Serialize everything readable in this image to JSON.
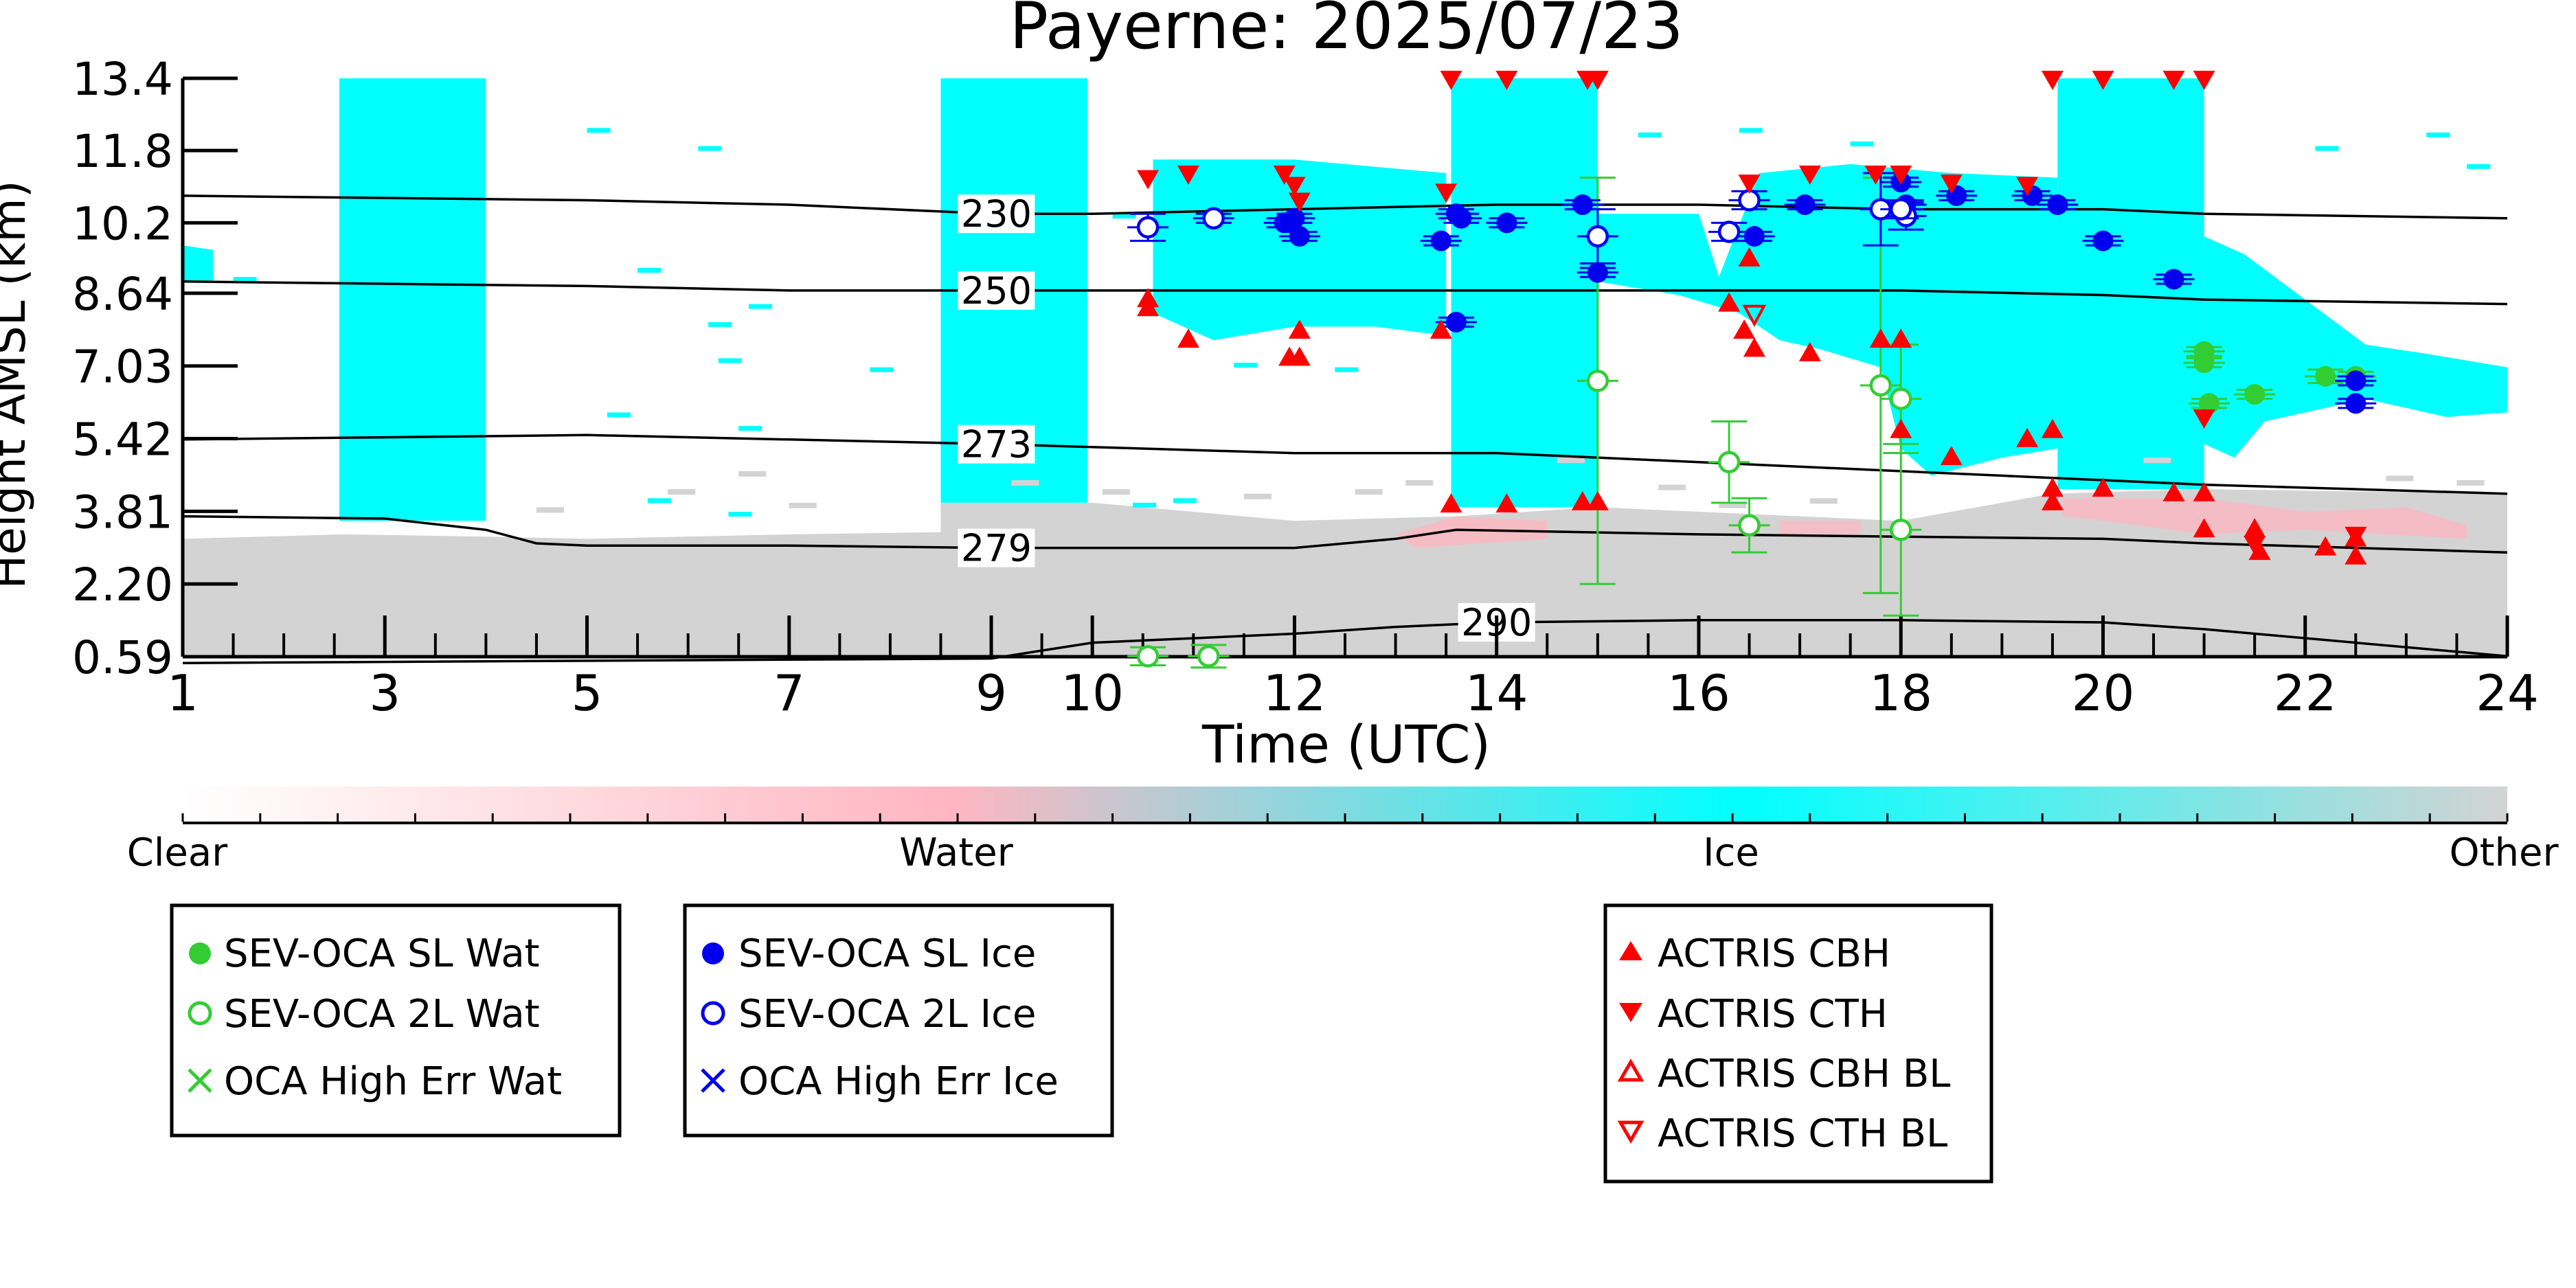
{
  "chart_data": {
    "type": "scatter",
    "title": "Payerne: 2025/07/23",
    "xlabel": "Time (UTC)",
    "ylabel": "Height AMSL (km)",
    "xlim": [
      1,
      24
    ],
    "ylim": [
      0.59,
      13.4
    ],
    "x_ticks": [
      1,
      3,
      5,
      7,
      9,
      10,
      12,
      14,
      16,
      18,
      20,
      22,
      24
    ],
    "y_ticks": [
      "0.59",
      "2.20",
      "3.81",
      "5.42",
      "7.03",
      "8.64",
      "10.2",
      "11.8",
      "13.4"
    ],
    "y_tick_values": [
      0.59,
      2.2,
      3.81,
      5.42,
      7.03,
      8.64,
      10.2,
      11.8,
      13.4
    ],
    "colorbar": {
      "labels": [
        "Clear",
        "Water",
        "Ice",
        "Other"
      ],
      "colors": [
        "#ffffff",
        "#ffb6c1",
        "#00ffff",
        "#d3d3d3"
      ]
    },
    "isotherms": [
      {
        "label": "230",
        "label_x": 9.05,
        "x": [
          1,
          5,
          7,
          9,
          10,
          12,
          14,
          16,
          18,
          20,
          21,
          24
        ],
        "y": [
          10.8,
          10.7,
          10.6,
          10.4,
          10.4,
          10.5,
          10.6,
          10.6,
          10.5,
          10.5,
          10.4,
          10.3
        ]
      },
      {
        "label": "250",
        "label_x": 9.05,
        "x": [
          1,
          5,
          7,
          9,
          10,
          12,
          14,
          16,
          18,
          20,
          21,
          24
        ],
        "y": [
          8.9,
          8.8,
          8.7,
          8.7,
          8.7,
          8.7,
          8.7,
          8.7,
          8.7,
          8.6,
          8.5,
          8.4
        ]
      },
      {
        "label": "273",
        "label_x": 9.05,
        "x": [
          1,
          3,
          5,
          7,
          9,
          12,
          14,
          16,
          18,
          20,
          21,
          24
        ],
        "y": [
          5.4,
          5.45,
          5.5,
          5.4,
          5.3,
          5.1,
          5.1,
          4.9,
          4.7,
          4.5,
          4.4,
          4.2
        ]
      },
      {
        "label": "279",
        "label_x": 9.05,
        "x": [
          1,
          3,
          4,
          4.5,
          5,
          7,
          9,
          12,
          13,
          13.6,
          16,
          18,
          20,
          21,
          24
        ],
        "y": [
          3.7,
          3.65,
          3.4,
          3.1,
          3.05,
          3.05,
          3.0,
          3.0,
          3.2,
          3.4,
          3.3,
          3.25,
          3.2,
          3.1,
          2.9
        ]
      },
      {
        "label": "290",
        "label_x": 14.0,
        "x": [
          1,
          9,
          10,
          11,
          12,
          13,
          14,
          16,
          18,
          20,
          21,
          24
        ],
        "y": [
          0.45,
          0.55,
          0.9,
          1.0,
          1.1,
          1.25,
          1.35,
          1.4,
          1.4,
          1.35,
          1.2,
          0.6
        ]
      }
    ],
    "series": [
      {
        "name": "SEV-OCA SL Wat",
        "marker": "filled-circle",
        "color": "#33cc33",
        "points": [
          [
            21.0,
            7.35
          ],
          [
            21.0,
            7.1
          ],
          [
            21.05,
            6.2
          ],
          [
            21.5,
            6.4
          ],
          [
            22.2,
            6.8
          ],
          [
            22.5,
            6.8
          ]
        ],
        "err": [
          0.1,
          0.1,
          0.1,
          0.1,
          0.15,
          0.1
        ]
      },
      {
        "name": "SEV-OCA 2L Wat",
        "marker": "open-circle",
        "color": "#33cc33",
        "points": [
          [
            10.55,
            0.6
          ],
          [
            11.15,
            0.6
          ],
          [
            15.0,
            6.7
          ],
          [
            16.3,
            4.9
          ],
          [
            16.5,
            3.5
          ],
          [
            17.8,
            6.6
          ],
          [
            18.0,
            6.3
          ],
          [
            18.0,
            3.4
          ]
        ],
        "err": [
          0.2,
          0.25,
          4.5,
          0.9,
          0.6,
          4.6,
          1.2,
          1.9
        ]
      },
      {
        "name": "OCA High Err Wat",
        "marker": "x",
        "color": "#33cc33",
        "points": []
      },
      {
        "name": "SEV-OCA SL Ice",
        "marker": "filled-circle",
        "color": "#0000ee",
        "points": [
          [
            11.9,
            10.2
          ],
          [
            12.0,
            10.3
          ],
          [
            12.05,
            9.9
          ],
          [
            13.45,
            9.8
          ],
          [
            13.6,
            10.4
          ],
          [
            13.65,
            10.3
          ],
          [
            13.6,
            8.0
          ],
          [
            14.1,
            10.2
          ],
          [
            14.85,
            10.6
          ],
          [
            15.0,
            9.1
          ],
          [
            16.55,
            9.9
          ],
          [
            17.05,
            10.6
          ],
          [
            18.0,
            11.1
          ],
          [
            18.05,
            10.6
          ],
          [
            18.55,
            10.8
          ],
          [
            19.3,
            10.8
          ],
          [
            19.55,
            10.6
          ],
          [
            20.0,
            9.8
          ],
          [
            20.7,
            8.95
          ],
          [
            22.5,
            6.7
          ],
          [
            22.5,
            6.2
          ]
        ],
        "err": [
          0.1,
          0.1,
          0.1,
          0.1,
          0.1,
          0.1,
          0.1,
          0.1,
          0.1,
          0.1,
          0.1,
          0.1,
          0.1,
          0.1,
          0.1,
          0.1,
          0.1,
          0.1,
          0.1,
          0.1,
          0.1
        ]
      },
      {
        "name": "SEV-OCA 2L Ice",
        "marker": "open-circle",
        "color": "#0000ee",
        "points": [
          [
            10.55,
            10.1
          ],
          [
            11.2,
            10.3
          ],
          [
            15.0,
            9.9
          ],
          [
            16.3,
            10.0
          ],
          [
            16.5,
            10.7
          ],
          [
            17.8,
            10.5
          ],
          [
            18.05,
            10.35
          ],
          [
            18.0,
            10.5
          ]
        ],
        "err": [
          0.3,
          0.1,
          0.6,
          0.2,
          0.2,
          0.8,
          0.3,
          0.2
        ]
      },
      {
        "name": "OCA High Err Ice",
        "marker": "x",
        "color": "#0000ee",
        "points": []
      },
      {
        "name": "ACTRIS CBH",
        "marker": "triangle-up",
        "color": "#ff0000",
        "points": [
          [
            10.55,
            8.5
          ],
          [
            10.55,
            8.3
          ],
          [
            10.95,
            7.6
          ],
          [
            11.95,
            7.2
          ],
          [
            12.05,
            7.2
          ],
          [
            12.05,
            7.8
          ],
          [
            13.45,
            7.8
          ],
          [
            13.55,
            3.95
          ],
          [
            14.1,
            3.95
          ],
          [
            14.85,
            4.0
          ],
          [
            15.0,
            4.0
          ],
          [
            16.3,
            8.4
          ],
          [
            16.5,
            9.4
          ],
          [
            16.45,
            7.8
          ],
          [
            16.55,
            7.4
          ],
          [
            17.1,
            7.3
          ],
          [
            17.8,
            7.6
          ],
          [
            18.0,
            7.6
          ],
          [
            18.0,
            5.6
          ],
          [
            18.5,
            5.0
          ],
          [
            19.25,
            5.4
          ],
          [
            19.5,
            5.6
          ],
          [
            19.5,
            4.3
          ],
          [
            19.5,
            4.0
          ],
          [
            20.0,
            4.3
          ],
          [
            20.7,
            4.2
          ],
          [
            21.0,
            4.2
          ],
          [
            21.0,
            3.4
          ],
          [
            21.5,
            3.4
          ],
          [
            21.55,
            2.9
          ],
          [
            22.2,
            3.0
          ],
          [
            22.5,
            3.2
          ],
          [
            22.5,
            2.8
          ]
        ]
      },
      {
        "name": "ACTRIS CTH",
        "marker": "triangle-down",
        "color": "#ff0000",
        "points": [
          [
            10.55,
            11.2
          ],
          [
            10.95,
            11.3
          ],
          [
            11.9,
            11.3
          ],
          [
            12.0,
            11.05
          ],
          [
            12.05,
            10.7
          ],
          [
            13.5,
            10.9
          ],
          [
            13.55,
            13.4
          ],
          [
            14.1,
            13.4
          ],
          [
            14.9,
            13.4
          ],
          [
            15.0,
            13.4
          ],
          [
            16.5,
            11.1
          ],
          [
            17.1,
            11.3
          ],
          [
            17.75,
            11.3
          ],
          [
            18.0,
            11.3
          ],
          [
            18.5,
            11.1
          ],
          [
            19.25,
            11.05
          ],
          [
            19.5,
            13.4
          ],
          [
            20.0,
            13.4
          ],
          [
            20.7,
            13.4
          ],
          [
            21.0,
            13.4
          ],
          [
            21.0,
            5.9
          ],
          [
            21.5,
            3.1
          ],
          [
            22.5,
            3.3
          ]
        ]
      },
      {
        "name": "ACTRIS CBH BL",
        "marker": "open-triangle-up",
        "color": "#ff0000",
        "points": []
      },
      {
        "name": "ACTRIS CTH BL",
        "marker": "open-triangle-down",
        "color": "#ff0000",
        "points": [
          [
            16.55,
            8.2
          ]
        ]
      }
    ],
    "legend": [
      {
        "box": "left",
        "items": [
          "SEV-OCA SL Wat",
          "SEV-OCA 2L Wat",
          "OCA High Err Wat"
        ]
      },
      {
        "box": "middle",
        "items": [
          "SEV-OCA SL Ice",
          "SEV-OCA 2L Ice",
          "OCA High Err Ice"
        ]
      },
      {
        "box": "right",
        "items": [
          "ACTRIS CBH",
          "ACTRIS CTH",
          "ACTRIS CBH BL",
          "ACTRIS CTH BL"
        ]
      }
    ]
  }
}
